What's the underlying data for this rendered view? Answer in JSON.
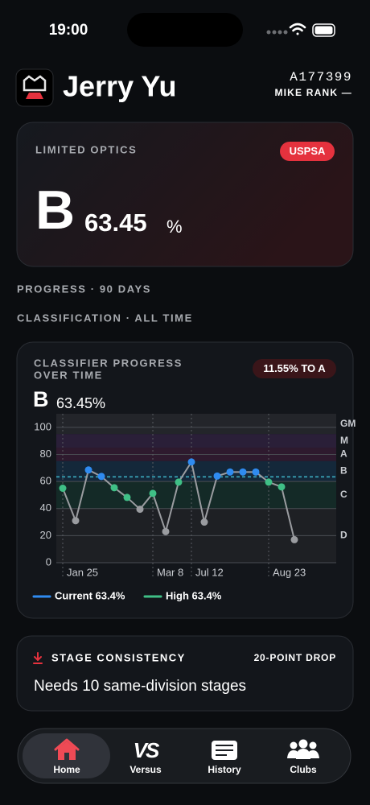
{
  "status_bar": {
    "time": "19:00"
  },
  "header": {
    "name": "Jerry Yu",
    "member_id": "A177399",
    "rank": "MIKE RANK —"
  },
  "division_card": {
    "division": "LIMITED OPTICS",
    "badge": "USPSA",
    "class": "B",
    "percent": 63.45,
    "unit": "%"
  },
  "sections": [
    "PROGRESS · 90 DAYS",
    "CLASSIFICATION · ALL TIME"
  ],
  "chart_data": {
    "type": "line",
    "title": [
      "CLASSIFIER PROGRESS",
      "OVER TIME"
    ],
    "badge": "11.55% TO A",
    "class": "B",
    "value_text": "63.45%",
    "categories": [
      "Jan 25",
      null,
      null,
      null,
      null,
      null,
      null,
      "Mar 8",
      null,
      null,
      "Jul 12",
      null,
      null,
      null,
      null,
      null,
      "Aug 23",
      null,
      null
    ],
    "values": [
      55,
      31,
      68.5,
      63.7,
      55.4,
      48.2,
      39.5,
      51.2,
      23,
      59.5,
      74.4,
      30,
      64,
      67,
      67,
      67,
      59.5,
      56,
      17
    ],
    "line_color": "#9a9ca0",
    "ylim": [
      0,
      110
    ],
    "yticks": [
      0,
      20,
      40,
      60,
      80,
      100
    ],
    "grid": true,
    "reference_line": 63.4,
    "reference_color": "#3fb6c9",
    "bands": [
      {
        "label": "GM",
        "min": 95,
        "max": 110,
        "fill": "#23252a",
        "marker": "#9a9ca0"
      },
      {
        "label": "M",
        "min": 85,
        "max": 95,
        "fill": "#2a1f38",
        "marker": "#9a9ca0"
      },
      {
        "label": "A",
        "min": 75,
        "max": 85,
        "fill": "#2e1a2e",
        "marker": "#9a9ca0"
      },
      {
        "label": "B",
        "min": 60,
        "max": 75,
        "fill": "#14283a",
        "marker": "#2f8bf0"
      },
      {
        "label": "C",
        "min": 40,
        "max": 60,
        "fill": "#142a27",
        "marker": "#3fbf86"
      },
      {
        "label": "D",
        "min": 0,
        "max": 40,
        "fill": "#1e2024",
        "marker": "#9a9ca0"
      }
    ],
    "legend": [
      {
        "label": "Current 63.4%",
        "color": "#2f8bf0"
      },
      {
        "label": "High 63.4%",
        "color": "#3fbf86"
      }
    ]
  },
  "stage_card": {
    "title": "STAGE CONSISTENCY",
    "note": "20-POINT DROP",
    "message": "Needs 10 same-division stages"
  },
  "tabs": [
    {
      "label": "Home",
      "active": true
    },
    {
      "label": "Versus",
      "active": false
    },
    {
      "label": "History",
      "active": false
    },
    {
      "label": "Clubs",
      "active": false
    }
  ]
}
